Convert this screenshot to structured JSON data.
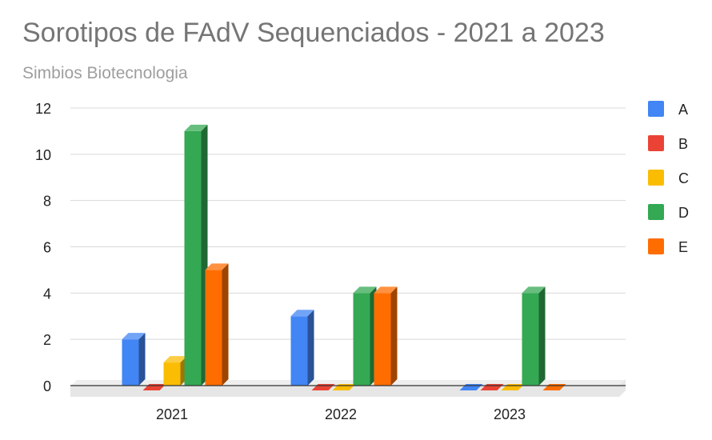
{
  "chart_data": {
    "type": "bar",
    "title": "Sorotipos de FAdV Sequenciados - 2021 a 2023",
    "subtitle": "Simbios Biotecnologia",
    "xlabel": "",
    "ylabel": "",
    "categories": [
      "2021",
      "2022",
      "2023"
    ],
    "series": [
      {
        "name": "A",
        "color": "#4285f4",
        "values": [
          2,
          3,
          0
        ]
      },
      {
        "name": "B",
        "color": "#ea4335",
        "values": [
          0,
          0,
          0
        ]
      },
      {
        "name": "C",
        "color": "#fbbc04",
        "values": [
          1,
          0,
          0
        ]
      },
      {
        "name": "D",
        "color": "#34a853",
        "values": [
          11,
          4,
          4
        ]
      },
      {
        "name": "E",
        "color": "#ff6d01",
        "values": [
          5,
          4,
          0
        ]
      }
    ],
    "ylim": [
      0,
      12
    ],
    "yticks": [
      0,
      2,
      4,
      6,
      8,
      10,
      12
    ],
    "grid": true,
    "legend": "right",
    "style": "3d"
  }
}
